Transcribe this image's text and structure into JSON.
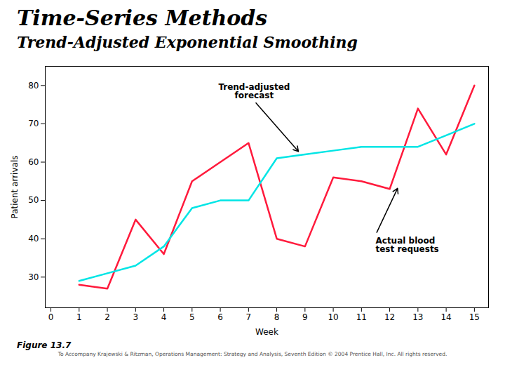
{
  "chart_data": {
    "type": "line",
    "title": "Time-Series Methods",
    "subtitle": "Trend-Adjusted Exponential Smoothing",
    "xlabel": "Week",
    "ylabel": "Patient arrivals",
    "x": [
      1,
      2,
      3,
      4,
      5,
      6,
      7,
      8,
      9,
      10,
      11,
      12,
      13,
      14,
      15
    ],
    "series": [
      {
        "color": "#ff1a3c",
        "values": [
          28,
          27,
          45,
          36,
          55,
          60,
          65,
          40,
          38,
          56,
          55,
          53,
          74,
          62,
          80
        ]
      },
      {
        "color": "#00e5e5",
        "values": [
          29,
          31,
          33,
          38,
          48,
          50,
          50,
          61,
          62,
          63,
          64,
          64,
          64,
          67,
          70
        ]
      }
    ],
    "xlim": [
      -0.2,
      15.5
    ],
    "xticks": [
      0,
      1,
      2,
      3,
      4,
      5,
      6,
      7,
      8,
      9,
      10,
      11,
      12,
      13,
      14,
      15
    ],
    "ylim": [
      22,
      85
    ],
    "yticks": [
      30,
      40,
      50,
      60,
      70,
      80
    ],
    "grid": false,
    "annotations": [
      {
        "text": "Trend-adjusted\nforecast",
        "x": 8.8,
        "y": 62.5,
        "xytext": [
          7.2,
          76
        ]
      },
      {
        "text": "Actual blood\ntest requests",
        "x": 12.3,
        "y": 53.5,
        "xytext": [
          11.5,
          41
        ]
      }
    ],
    "caption": "Figure 13.7",
    "copyright": "To Accompany Krajewski & Ritzman, Operations Management: Strategy and Analysis, Seventh Edition  © 2004 Prentice Hall, Inc. All rights reserved."
  }
}
